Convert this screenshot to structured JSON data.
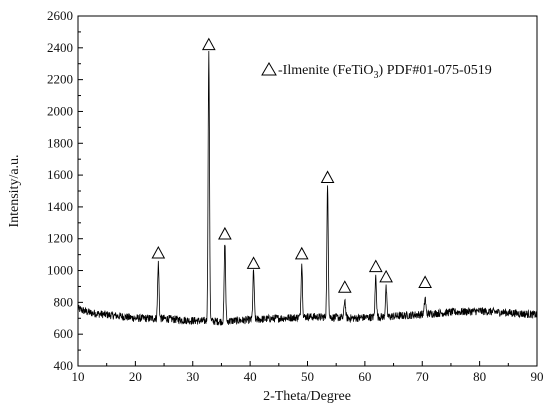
{
  "chart_data": {
    "type": "line",
    "xlabel": "2-Theta/Degree",
    "ylabel": "Intensity/a.u.",
    "xlim": [
      10,
      90
    ],
    "ylim": [
      400,
      2600
    ],
    "x_ticks": [
      10,
      20,
      30,
      40,
      50,
      60,
      70,
      80,
      90
    ],
    "y_ticks": [
      400,
      600,
      800,
      1000,
      1200,
      1400,
      1600,
      1800,
      2000,
      2200,
      2400,
      2600
    ],
    "grid": false,
    "legend": {
      "placement": "top-right",
      "marker": "open-triangle",
      "text_prefix": "-Ilmenite (FeTiO",
      "text_sub": "3",
      "text_suffix": ") PDF#01-075-0519"
    },
    "series": [
      {
        "color": "#000000",
        "baseline": [
          [
            10,
            760
          ],
          [
            12,
            735
          ],
          [
            15,
            722
          ],
          [
            18,
            710
          ],
          [
            20,
            700
          ],
          [
            22,
            700
          ],
          [
            25,
            698
          ],
          [
            28,
            690
          ],
          [
            30,
            685
          ],
          [
            35,
            680
          ],
          [
            40,
            690
          ],
          [
            45,
            700
          ],
          [
            48,
            705
          ],
          [
            50,
            710
          ],
          [
            55,
            705
          ],
          [
            58,
            700
          ],
          [
            60,
            705
          ],
          [
            65,
            712
          ],
          [
            70,
            725
          ],
          [
            75,
            738
          ],
          [
            80,
            745
          ],
          [
            85,
            735
          ],
          [
            90,
            722
          ]
        ],
        "peaks": [
          {
            "x": 24.0,
            "y": 1045
          },
          {
            "x": 32.8,
            "y": 2360
          },
          {
            "x": 35.6,
            "y": 1180
          },
          {
            "x": 40.6,
            "y": 1000
          },
          {
            "x": 49.0,
            "y": 1045
          },
          {
            "x": 53.5,
            "y": 1530
          },
          {
            "x": 56.5,
            "y": 820
          },
          {
            "x": 61.9,
            "y": 965
          },
          {
            "x": 63.7,
            "y": 890
          },
          {
            "x": 70.5,
            "y": 830
          }
        ],
        "markers": [
          {
            "x": 24.0,
            "y": 1110
          },
          {
            "x": 32.8,
            "y": 2420
          },
          {
            "x": 35.6,
            "y": 1230
          },
          {
            "x": 40.6,
            "y": 1045
          },
          {
            "x": 49.0,
            "y": 1105
          },
          {
            "x": 53.5,
            "y": 1585
          },
          {
            "x": 56.5,
            "y": 895
          },
          {
            "x": 61.9,
            "y": 1025
          },
          {
            "x": 63.7,
            "y": 960
          },
          {
            "x": 70.5,
            "y": 925
          }
        ]
      }
    ]
  }
}
